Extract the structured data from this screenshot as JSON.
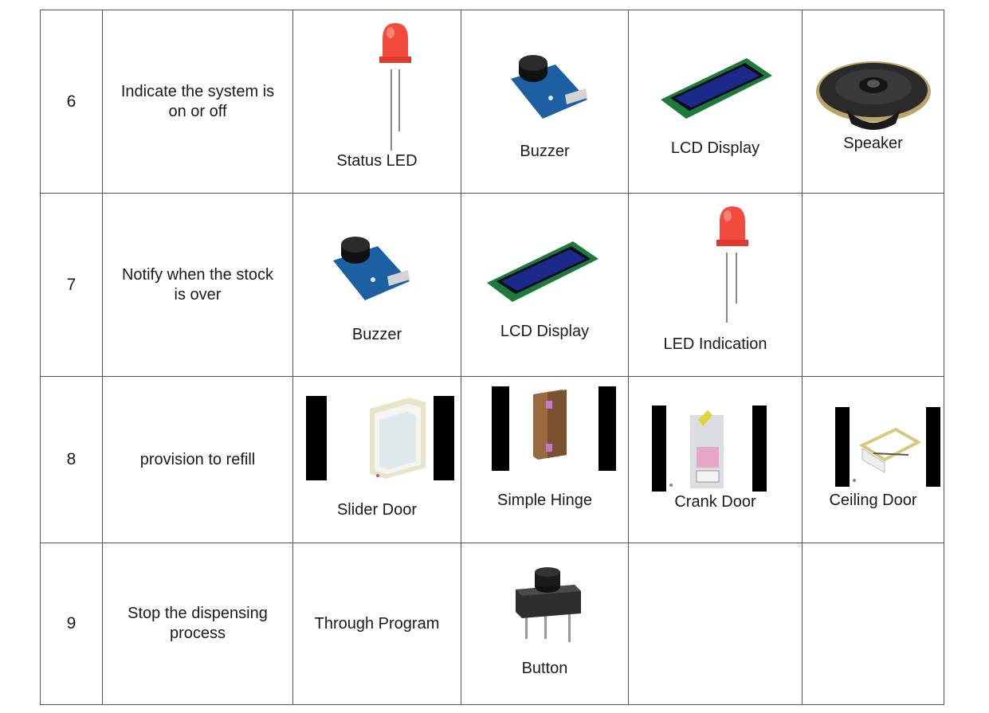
{
  "rows": [
    {
      "number": "6",
      "function": "Indicate the system is on or off",
      "options": [
        {
          "label": "Status LED",
          "icon": "led-icon"
        },
        {
          "label": "Buzzer",
          "icon": "buzzer-icon"
        },
        {
          "label": "LCD Display",
          "icon": "lcd-display-icon"
        },
        {
          "label": "Speaker",
          "icon": "speaker-icon"
        }
      ]
    },
    {
      "number": "7",
      "function": "Notify when the stock is over",
      "options": [
        {
          "label": "Buzzer",
          "icon": "buzzer-icon"
        },
        {
          "label": "LCD Display",
          "icon": "lcd-display-icon"
        },
        {
          "label": "LED Indication",
          "icon": "led-icon"
        }
      ]
    },
    {
      "number": "8",
      "function": "provision to refill",
      "options": [
        {
          "label": "Slider Door",
          "icon": "slider-door-icon"
        },
        {
          "label": "Simple Hinge",
          "icon": "simple-hinge-icon"
        },
        {
          "label": "Crank Door",
          "icon": "crank-door-icon"
        },
        {
          "label": "Ceiling Door",
          "icon": "ceiling-door-icon"
        }
      ]
    },
    {
      "number": "9",
      "function": "Stop the dispensing process",
      "options": [
        {
          "label": "Through Program",
          "icon": ""
        },
        {
          "label": "Button",
          "icon": "push-button-icon"
        }
      ]
    }
  ]
}
